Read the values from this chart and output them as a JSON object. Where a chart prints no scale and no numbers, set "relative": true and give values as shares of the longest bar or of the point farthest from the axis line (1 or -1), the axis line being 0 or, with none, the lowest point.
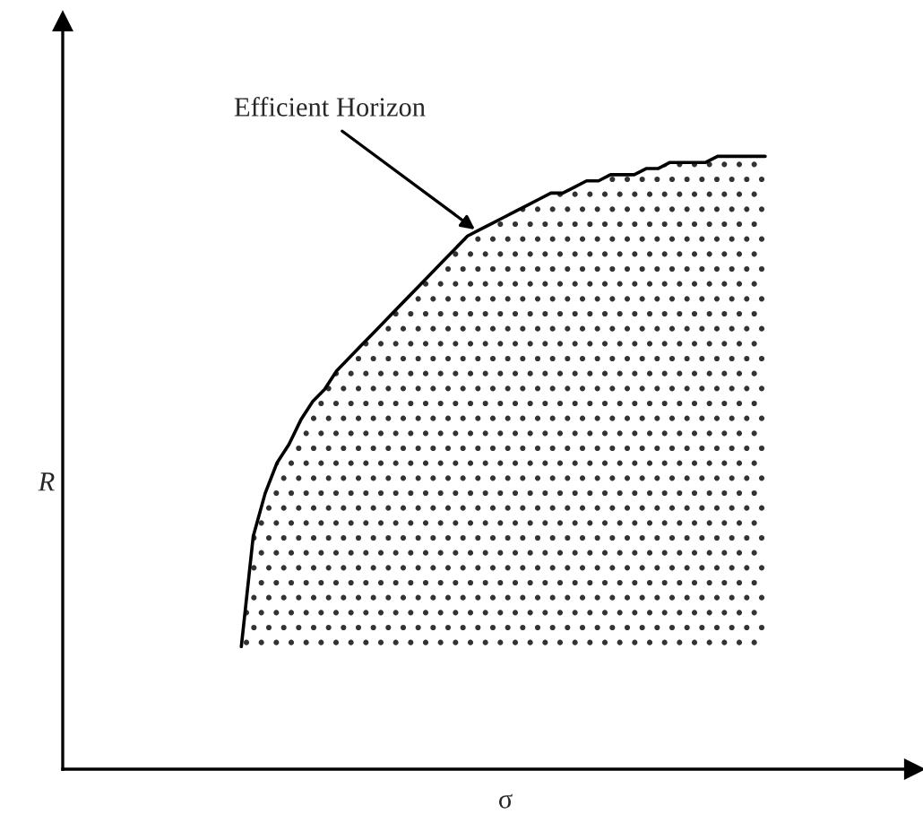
{
  "chart_data": {
    "type": "line",
    "relative": true,
    "xlabel": "σ",
    "categories": [
      null,
      null,
      null,
      null,
      null,
      null,
      null,
      null,
      null,
      null,
      null,
      null,
      null,
      null,
      null,
      null,
      null,
      null,
      null,
      null,
      null,
      null,
      null,
      null,
      null,
      null,
      null,
      null,
      null,
      null,
      null,
      null,
      null,
      null,
      null,
      null,
      null,
      null,
      null,
      null,
      null,
      null,
      null,
      null,
      null
    ],
    "series": [
      {
        "color": "#000000",
        "values": [
          0.2,
          0.38,
          0.45,
          0.5,
          0.53,
          0.57,
          0.6,
          0.62,
          0.65,
          0.67,
          0.69,
          0.71,
          0.73,
          0.75,
          0.77,
          0.79,
          0.81,
          0.83,
          0.85,
          0.87,
          0.88,
          0.89,
          0.9,
          0.91,
          0.92,
          0.93,
          0.94,
          0.94,
          0.95,
          0.96,
          0.96,
          0.97,
          0.97,
          0.97,
          0.98,
          0.98,
          0.99,
          0.99,
          0.99,
          0.99,
          1.0,
          1.0,
          1.0,
          1.0,
          1.0
        ],
        "lower": [
          0.2,
          0.2,
          0.2,
          0.2,
          0.2,
          0.2,
          0.2,
          0.2,
          0.2,
          0.2,
          0.2,
          0.2,
          0.2,
          0.2,
          0.2,
          0.2,
          0.2,
          0.2,
          0.2,
          0.2,
          0.2,
          0.2,
          0.2,
          0.2,
          0.2,
          0.2,
          0.2,
          0.2,
          0.2,
          0.2,
          0.2,
          0.2,
          0.2,
          0.2,
          0.2,
          0.2,
          0.2,
          0.2,
          0.2,
          0.2,
          0.2,
          0.2,
          0.2,
          0.2,
          0.2
        ],
        "upper": [
          0.2,
          0.38,
          0.45,
          0.5,
          0.53,
          0.57,
          0.6,
          0.62,
          0.65,
          0.67,
          0.69,
          0.71,
          0.73,
          0.75,
          0.77,
          0.79,
          0.81,
          0.83,
          0.85,
          0.87,
          0.88,
          0.89,
          0.9,
          0.91,
          0.92,
          0.93,
          0.94,
          0.94,
          0.95,
          0.96,
          0.96,
          0.97,
          0.97,
          0.97,
          0.98,
          0.98,
          0.99,
          0.99,
          0.99,
          0.99,
          1.0,
          1.0,
          1.0,
          1.0,
          1.0
        ]
      }
    ],
    "annotations": [
      "Efficient Horizon",
      "R"
    ],
    "line_style": "solid"
  }
}
